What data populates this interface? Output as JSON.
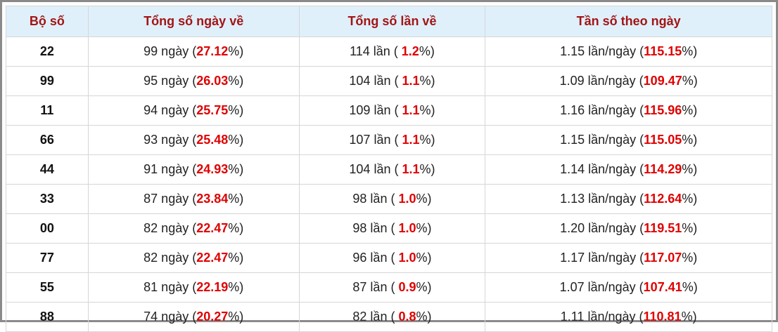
{
  "table": {
    "header": [
      "Bộ số",
      "Tổng số ngày về",
      "Tổng số lần về",
      "Tần số theo ngày"
    ],
    "rows": [
      [
        "22",
        [
          "99 ngày (",
          "27.12",
          "%)"
        ],
        [
          "114 lần ( ",
          "1.2",
          "%)"
        ],
        [
          "1.15 lần/ngày (",
          "115.15",
          "%)"
        ]
      ],
      [
        "99",
        [
          "95 ngày (",
          "26.03",
          "%)"
        ],
        [
          "104 lần ( ",
          "1.1",
          "%)"
        ],
        [
          "1.09 lần/ngày (",
          "109.47",
          "%)"
        ]
      ],
      [
        "11",
        [
          "94 ngày (",
          "25.75",
          "%)"
        ],
        [
          "109 lần ( ",
          "1.1",
          "%)"
        ],
        [
          "1.16 lần/ngày (",
          "115.96",
          "%)"
        ]
      ],
      [
        "66",
        [
          "93 ngày (",
          "25.48",
          "%)"
        ],
        [
          "107 lần ( ",
          "1.1",
          "%)"
        ],
        [
          "1.15 lần/ngày (",
          "115.05",
          "%)"
        ]
      ],
      [
        "44",
        [
          "91 ngày (",
          "24.93",
          "%)"
        ],
        [
          "104 lần ( ",
          "1.1",
          "%)"
        ],
        [
          "1.14 lần/ngày (",
          "114.29",
          "%)"
        ]
      ],
      [
        "33",
        [
          "87 ngày (",
          "23.84",
          "%)"
        ],
        [
          "98 lần ( ",
          "1.0",
          "%)"
        ],
        [
          "1.13 lần/ngày (",
          "112.64",
          "%)"
        ]
      ],
      [
        "00",
        [
          "82 ngày (",
          "22.47",
          "%)"
        ],
        [
          "98 lần ( ",
          "1.0",
          "%)"
        ],
        [
          "1.20 lần/ngày (",
          "119.51",
          "%)"
        ]
      ],
      [
        "77",
        [
          "82 ngày (",
          "22.47",
          "%)"
        ],
        [
          "96 lần ( ",
          "1.0",
          "%)"
        ],
        [
          "1.17 lần/ngày (",
          "117.07",
          "%)"
        ]
      ],
      [
        "55",
        [
          "81 ngày (",
          "22.19",
          "%)"
        ],
        [
          "87 lần ( ",
          "0.9",
          "%)"
        ],
        [
          "1.07 lần/ngày (",
          "107.41",
          "%)"
        ]
      ],
      [
        "88",
        [
          "74 ngày (",
          "20.27",
          "%)"
        ],
        [
          "82 lần ( ",
          "0.8",
          "%)"
        ],
        [
          "1.11 lần/ngày (",
          "110.81",
          "%)"
        ]
      ]
    ]
  }
}
